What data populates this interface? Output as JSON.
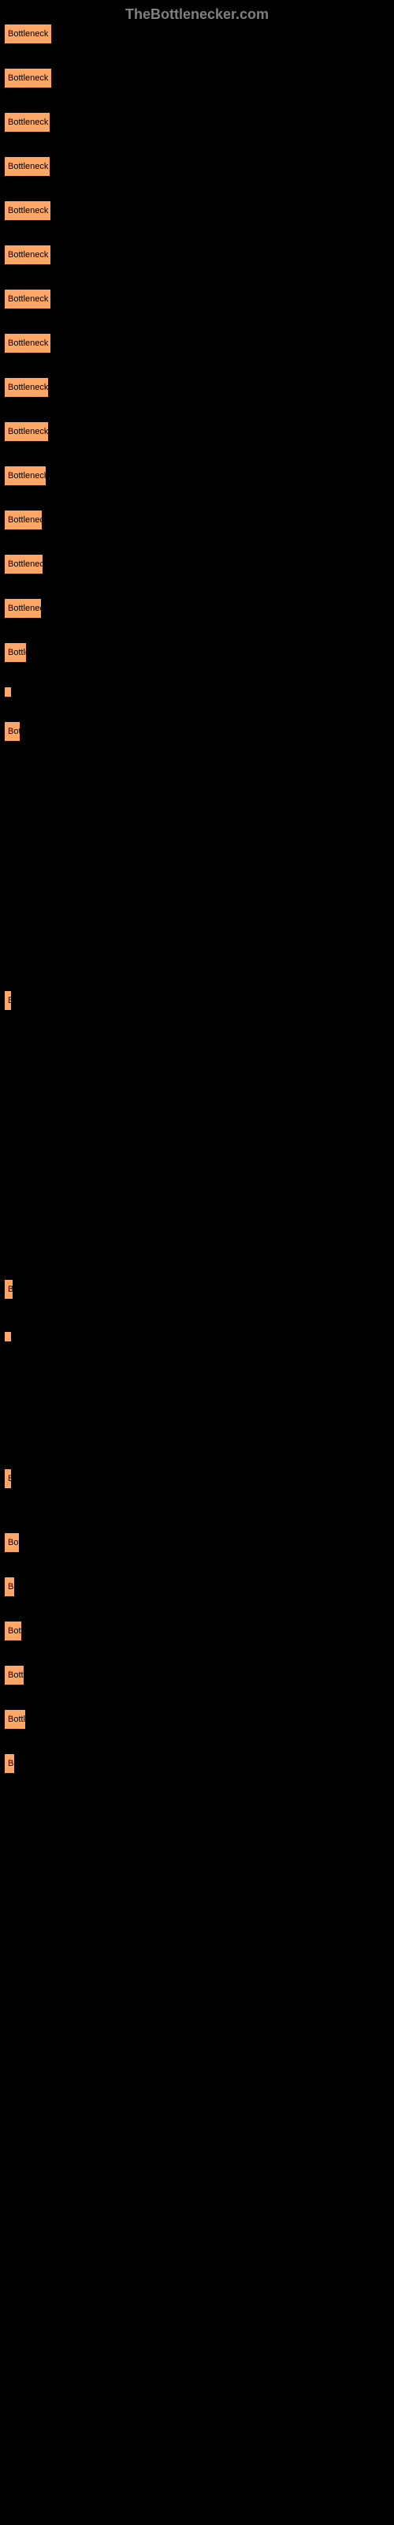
{
  "header": {
    "title": "TheBottlenecker.com"
  },
  "items": [
    {
      "text": "Bottleneck res",
      "width": 61
    },
    {
      "text": "Bottleneck res",
      "width": 61
    },
    {
      "text": "Bottleneck re",
      "width": 59
    },
    {
      "text": "Bottleneck re",
      "width": 59
    },
    {
      "text": "Bottleneck re",
      "width": 60
    },
    {
      "text": "Bottleneck re",
      "width": 60
    },
    {
      "text": "Bottleneck re",
      "width": 60
    },
    {
      "text": "Bottleneck re",
      "width": 60
    },
    {
      "text": "Bottleneck r",
      "width": 57
    },
    {
      "text": "Bottleneck r",
      "width": 57
    },
    {
      "text": "Bottleneck r",
      "width": 54
    },
    {
      "text": "Bottleneck",
      "width": 49
    },
    {
      "text": "Bottleneck",
      "width": 50
    },
    {
      "text": "Bottleneck",
      "width": 48
    },
    {
      "text": "Bottle",
      "width": 29
    },
    {
      "text": "",
      "width": 3
    },
    {
      "text": "Bott",
      "width": 21
    },
    {
      "text": "B",
      "width": 8
    },
    {
      "text": "Bo",
      "width": 12
    },
    {
      "text": "",
      "width": 3
    },
    {
      "text": "B",
      "width": 8
    },
    {
      "text": "Bott",
      "width": 20
    },
    {
      "text": "Bo",
      "width": 14
    },
    {
      "text": "Bottl",
      "width": 23
    },
    {
      "text": "Bottle",
      "width": 26
    },
    {
      "text": "Bottle",
      "width": 28
    },
    {
      "text": "Bo",
      "width": 14
    }
  ],
  "layout": {
    "specialMargins": {
      "16": 310,
      "17": 335,
      "18": 35,
      "19": 155,
      "20": 50
    }
  },
  "colors": {
    "background": "#000000",
    "buttonBg": "#ffa666",
    "headerText": "#808080"
  }
}
